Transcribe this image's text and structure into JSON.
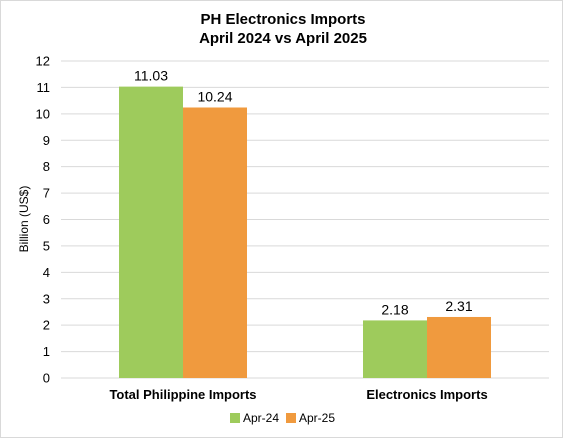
{
  "chart_data": {
    "type": "bar",
    "title": [
      "PH Electronics Imports",
      "April 2024 vs April 2025"
    ],
    "ylabel": "Billion (US$)",
    "xlabel": "",
    "categories": [
      "Total Philippine Imports",
      "Electronics Imports"
    ],
    "series": [
      {
        "name": "Apr-24",
        "values": [
          11.03,
          2.18
        ],
        "color": "#9ecb5c"
      },
      {
        "name": "Apr-25",
        "values": [
          10.24,
          2.31
        ],
        "color": "#f09a3e"
      }
    ],
    "ylim": [
      0,
      12
    ],
    "yticks": [
      "0",
      "1",
      "2",
      "3",
      "4",
      "5",
      "6",
      "7",
      "8",
      "9",
      "10",
      "11",
      "12"
    ],
    "data_labels": [
      [
        "11.03",
        "2.18"
      ],
      [
        "10.24",
        "2.31"
      ]
    ],
    "grid": true,
    "gridline_color": "#d9d9d9",
    "legend_position": "bottom"
  }
}
